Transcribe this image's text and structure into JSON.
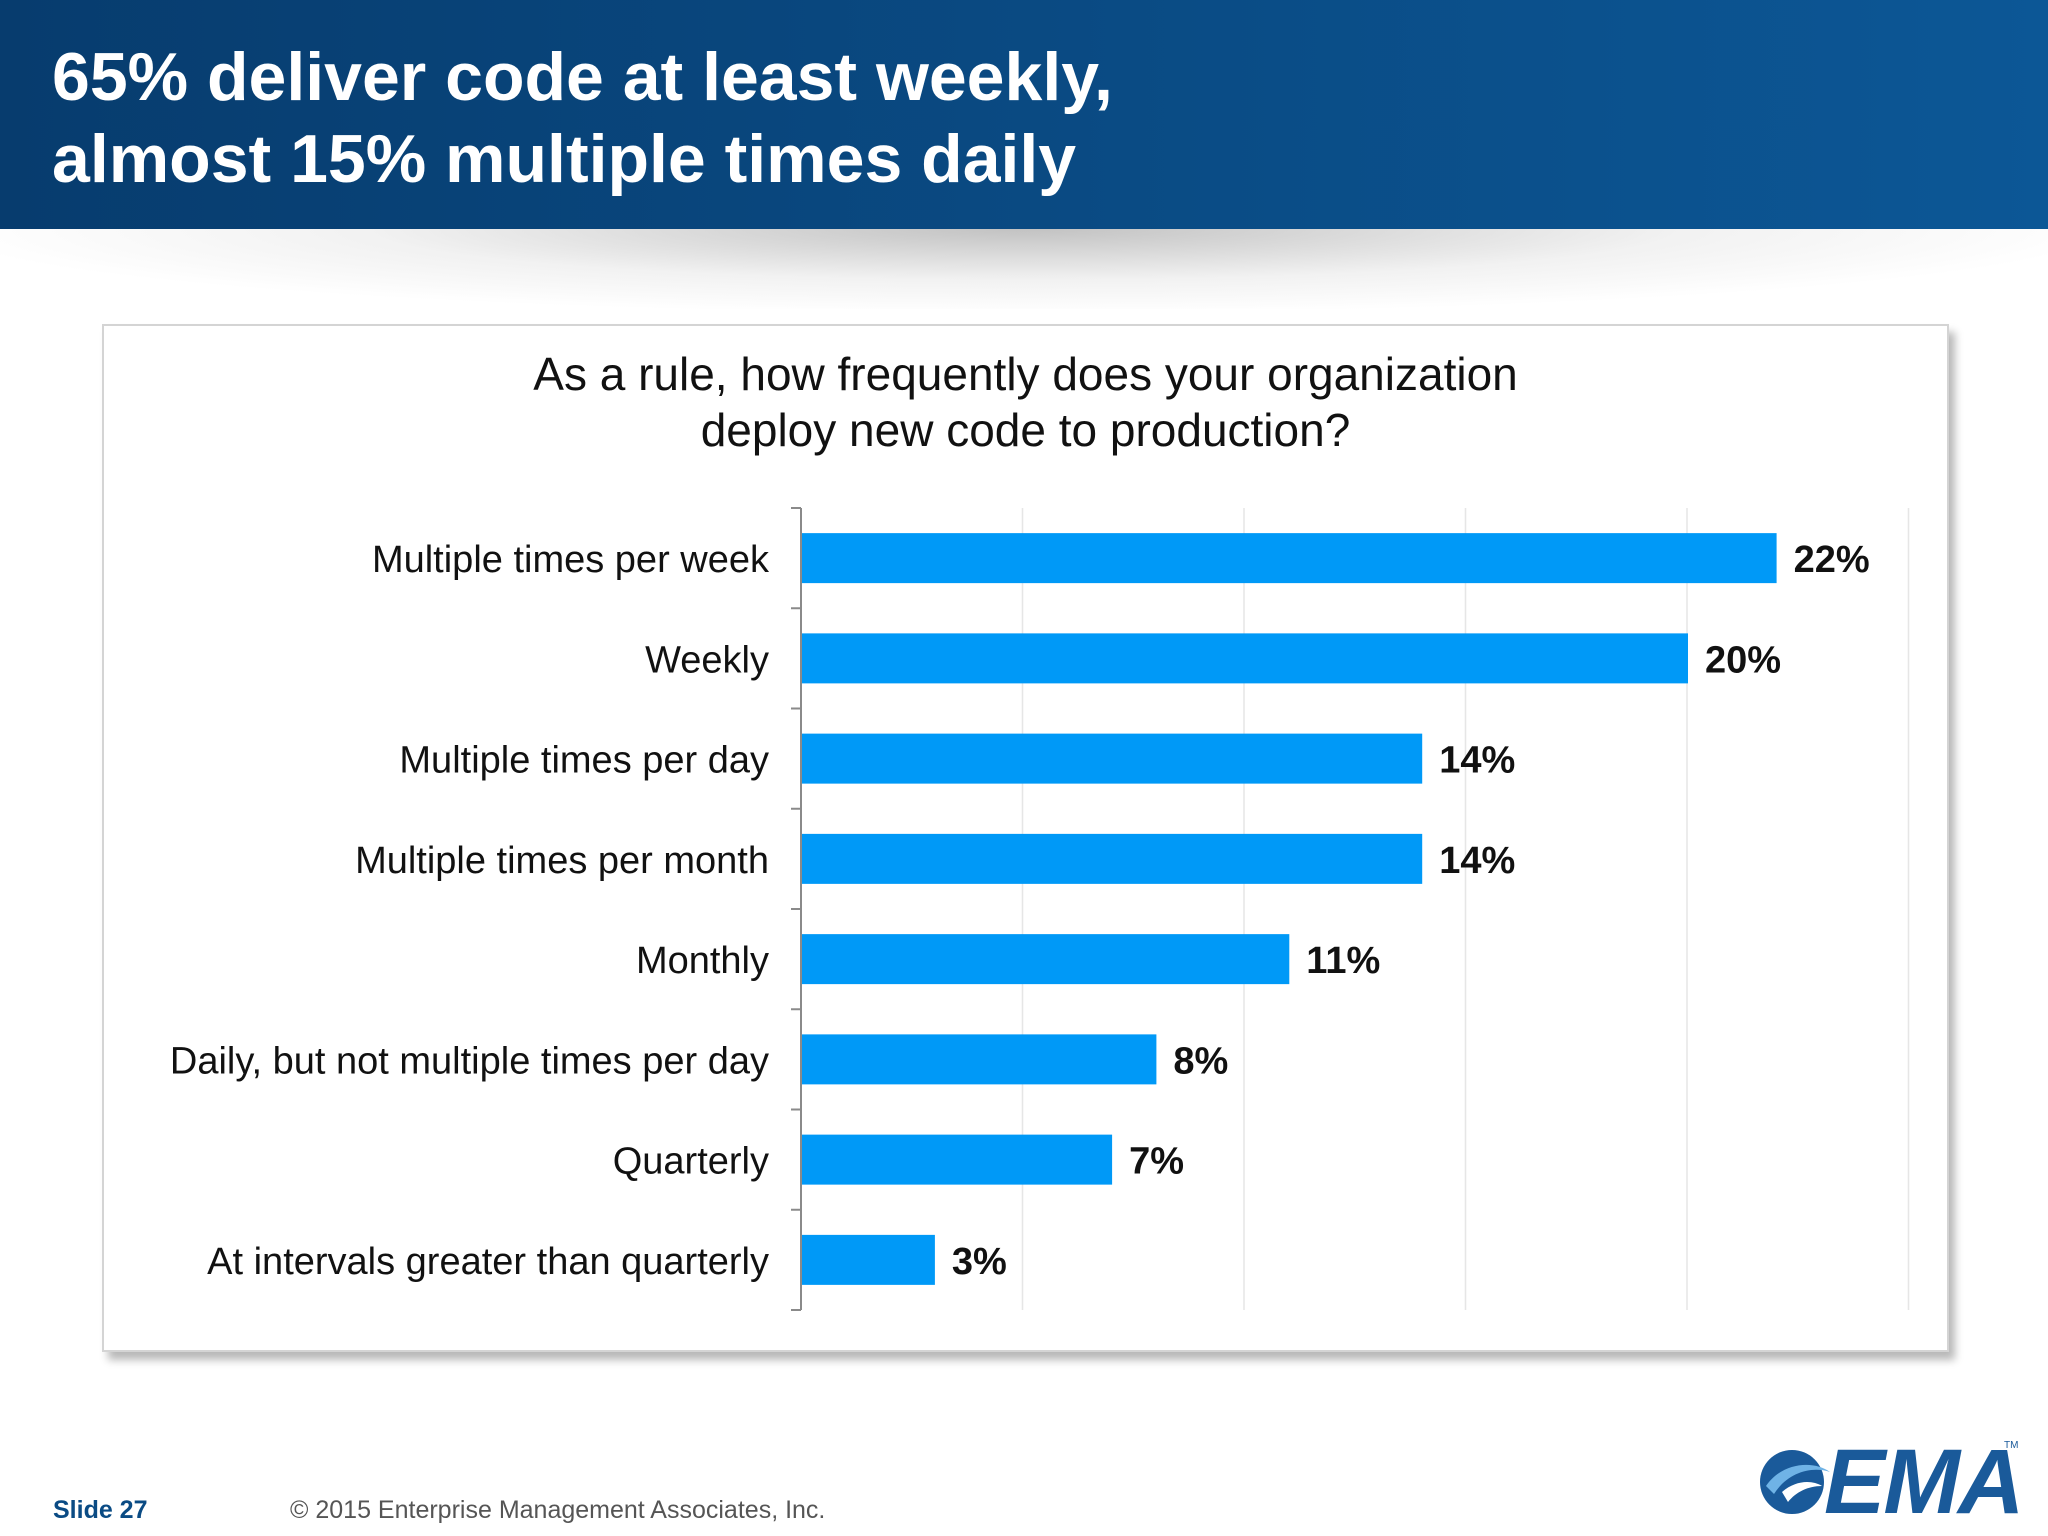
{
  "slide": {
    "title_lines": [
      "65% deliver code at least weekly,",
      "almost 15% multiple times daily"
    ],
    "slide_number": "Slide 27",
    "copyright": "© 2015 Enterprise Management Associates, Inc.",
    "logo_text": "EMA",
    "logo_tm": "TM"
  },
  "colors": {
    "bar": "#0099f7",
    "header": "#0a4b84"
  },
  "chart_data": {
    "type": "bar",
    "orientation": "horizontal",
    "title_lines": [
      "As a rule, how frequently does your organization",
      "deploy new code to production?"
    ],
    "categories": [
      "Multiple times per week",
      "Weekly",
      "Multiple times per day",
      "Multiple times per month",
      "Monthly",
      "Daily, but not multiple times per day",
      "Quarterly",
      "At intervals greater than quarterly"
    ],
    "values": [
      22,
      20,
      14,
      14,
      11,
      8,
      7,
      3
    ],
    "data_labels": [
      "22%",
      "20%",
      "14%",
      "14%",
      "11%",
      "8%",
      "7%",
      "3%"
    ],
    "unit": "%",
    "xlim": [
      0,
      25
    ],
    "grid": "vertical",
    "legend": "none"
  }
}
